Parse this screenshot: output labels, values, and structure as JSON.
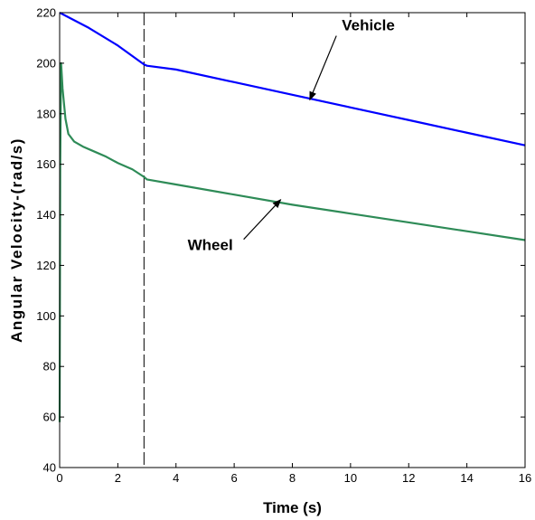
{
  "chart_data": {
    "type": "line",
    "title": "",
    "xlabel": "Time (s)",
    "ylabel": "Angular Velocity-(rad/s)",
    "xlim": [
      0,
      16
    ],
    "ylim": [
      40,
      220
    ],
    "xticks": [
      0,
      2,
      4,
      6,
      8,
      10,
      12,
      14,
      16
    ],
    "yticks": [
      40,
      60,
      80,
      100,
      120,
      140,
      160,
      180,
      200,
      220
    ],
    "grid": false,
    "legend": "none",
    "vline_x": 2.9,
    "series": [
      {
        "name": "Vehicle",
        "color": "#0000ff",
        "x": [
          0,
          1,
          2,
          2.9,
          3,
          4,
          6,
          8,
          10,
          12,
          14,
          16
        ],
        "y": [
          220,
          214,
          207,
          199.5,
          199,
          197.5,
          192.5,
          187.5,
          182.5,
          177.5,
          172.5,
          167.5
        ]
      },
      {
        "name": "Wheel",
        "color": "#2e8b57",
        "x": [
          0,
          0.02,
          0.05,
          0.1,
          0.2,
          0.3,
          0.5,
          0.8,
          1.2,
          1.6,
          2,
          2.5,
          2.9,
          3,
          4,
          6,
          8,
          10,
          12,
          14,
          16
        ],
        "y": [
          58,
          160,
          200,
          190,
          178,
          172,
          169,
          167,
          165,
          163,
          160.5,
          158,
          155,
          154,
          152,
          148,
          144,
          140.5,
          137,
          133.5,
          130
        ]
      }
    ],
    "annotations": [
      {
        "text": "Vehicle",
        "label_x": 9.7,
        "label_y": 213,
        "arrow_x": 8.6,
        "arrow_y": 185.5
      },
      {
        "text": "Wheel",
        "label_x": 4.4,
        "label_y": 126,
        "arrow_x": 7.6,
        "arrow_y": 146
      }
    ]
  }
}
